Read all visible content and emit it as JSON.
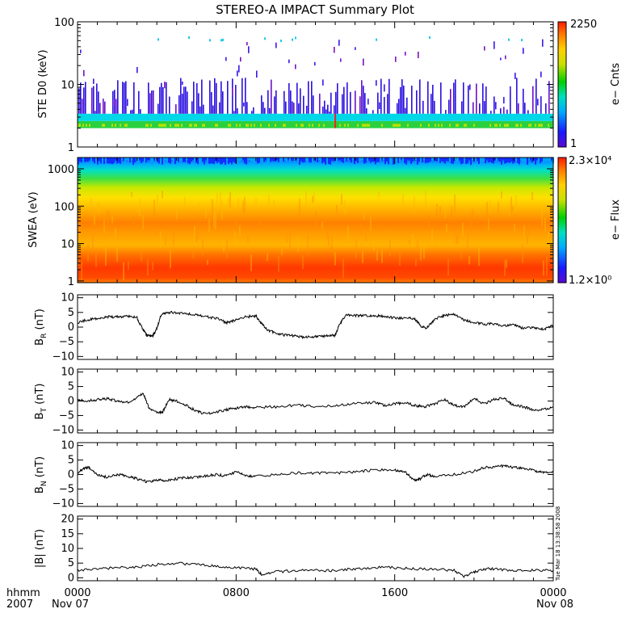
{
  "title": "STEREO-A IMPACT Summary Plot",
  "footer": {
    "left_top": "hhmm",
    "left_bottom": "2007",
    "date_start": "Nov 07",
    "date_end": "Nov 08",
    "timestamp": "Tue Mar 18 13:38:58 2008"
  },
  "time_ticks": [
    "0000",
    "0800",
    "1600",
    "0000"
  ],
  "chart_data": [
    {
      "id": "ste",
      "type": "heatmap",
      "ylabel": "STE D0 (keV)",
      "yscale": "log",
      "ylim": [
        1,
        100
      ],
      "yticks": [
        "1",
        "10",
        "100"
      ],
      "xlim": [
        0,
        24
      ],
      "colorbar": {
        "label": "e− Cnts",
        "max_label": "2250",
        "min_label": "1",
        "max": 2250,
        "min": 1
      },
      "description_levels": [
        {
          "energy_range_keV": [
            2.0,
            2.6
          ],
          "level": "green"
        },
        {
          "energy_range_keV": [
            2.6,
            3.4
          ],
          "level": "cyan"
        },
        {
          "energy_range_keV": [
            3.4,
            60
          ],
          "level": "sparse blue/purple"
        },
        {
          "energy_range_keV": [
            60,
            70
          ],
          "level": "sparse cyan"
        }
      ]
    },
    {
      "id": "swea",
      "type": "heatmap",
      "ylabel": "SWEA (eV)",
      "yscale": "log",
      "ylim": [
        0.9,
        2000
      ],
      "yticks": [
        "1",
        "10",
        "100",
        "1000"
      ],
      "xlim": [
        0,
        24
      ],
      "colorbar": {
        "label": "e− Flux",
        "max_label": "2.3×10⁴",
        "min_label": "1.2×10⁰",
        "max": 23000,
        "min": 1.2
      }
    },
    {
      "id": "br",
      "type": "line",
      "ylabel_main": "B",
      "ylabel_sub": "R",
      "ylabel_unit": " (nT)",
      "ylim": [
        -11,
        11
      ],
      "yticks": [
        "10",
        "5",
        "0",
        "−5",
        "−10"
      ],
      "ytick_values": [
        10,
        5,
        0,
        -5,
        -10
      ],
      "xlim": [
        0,
        24
      ],
      "series": [
        {
          "x": [
            0,
            0.5,
            1,
            1.5,
            2,
            2.5,
            3,
            3.2,
            3.5,
            3.8,
            4,
            4.2,
            4.5,
            5,
            5.5,
            6,
            6.5,
            7,
            7.5,
            8,
            8.5,
            9,
            9.3,
            9.6,
            10,
            10.5,
            11,
            11.5,
            12,
            12.5,
            13,
            13.2,
            13.5,
            14,
            14.5,
            15,
            15.5,
            16,
            16.5,
            17,
            17.3,
            17.6,
            18,
            18.5,
            19,
            19.5,
            20,
            20.5,
            21,
            21.5,
            22,
            22.5,
            23,
            23.5,
            24
          ],
          "y": [
            1.5,
            2.5,
            3.0,
            3.5,
            3.5,
            3.8,
            3.2,
            0.5,
            -2.8,
            -3.0,
            -0.5,
            4.0,
            5.0,
            5.0,
            4.5,
            4.2,
            3.5,
            3.0,
            1.5,
            2.5,
            3.5,
            3.8,
            1.0,
            -1.0,
            -2.0,
            -2.8,
            -3.0,
            -3.5,
            -3.2,
            -3.0,
            -2.8,
            0.5,
            4.0,
            4.0,
            3.8,
            4.0,
            3.5,
            3.2,
            3.0,
            3.0,
            0.5,
            -0.5,
            2.5,
            4.0,
            4.5,
            2.5,
            1.5,
            1.0,
            1.2,
            0.5,
            0.8,
            -0.5,
            0.0,
            -0.8,
            0.5
          ]
        }
      ]
    },
    {
      "id": "bt",
      "type": "line",
      "ylabel_main": "B",
      "ylabel_sub": "T",
      "ylabel_unit": " (nT)",
      "ylim": [
        -11,
        11
      ],
      "yticks": [
        "10",
        "5",
        "0",
        "−5",
        "−10"
      ],
      "ytick_values": [
        10,
        5,
        0,
        -5,
        -10
      ],
      "xlim": [
        0,
        24
      ],
      "series": [
        {
          "x": [
            0,
            0.5,
            1,
            1.5,
            2,
            2.5,
            3,
            3.3,
            3.6,
            4,
            4.3,
            4.6,
            5,
            5.5,
            6,
            6.5,
            7,
            7.5,
            8,
            8.5,
            9,
            10,
            11,
            12,
            13,
            14,
            15,
            15.5,
            16,
            16.5,
            17,
            17.5,
            18,
            18.5,
            19,
            19.5,
            20,
            20.5,
            21,
            21.5,
            22,
            22.5,
            23,
            23.5,
            24
          ],
          "y": [
            0.5,
            0.0,
            0.5,
            0.8,
            0.0,
            -0.5,
            1.0,
            3.0,
            -2.5,
            -4.0,
            -3.8,
            0.5,
            0.0,
            -1.5,
            -3.5,
            -4.5,
            -3.8,
            -3.0,
            -2.5,
            -2.0,
            -2.2,
            -2.0,
            -1.5,
            -1.8,
            -1.5,
            -0.8,
            -0.5,
            -1.5,
            -1.0,
            -0.5,
            -1.5,
            -2.0,
            -1.0,
            0.5,
            -1.5,
            -2.0,
            1.0,
            -1.0,
            0.5,
            1.0,
            -1.5,
            -2.0,
            -3.0,
            -3.0,
            -2.0
          ]
        }
      ]
    },
    {
      "id": "bn",
      "type": "line",
      "ylabel_main": "B",
      "ylabel_sub": "N",
      "ylabel_unit": " (nT)",
      "ylim": [
        -11,
        11
      ],
      "yticks": [
        "10",
        "5",
        "0",
        "−5",
        "−10"
      ],
      "ytick_values": [
        10,
        5,
        0,
        -5,
        -10
      ],
      "xlim": [
        0,
        24
      ],
      "series": [
        {
          "x": [
            0,
            0.3,
            0.6,
            1,
            1.5,
            2,
            2.5,
            3,
            3.5,
            4,
            4.5,
            5,
            5.5,
            6,
            6.5,
            7,
            7.5,
            8,
            8.5,
            9,
            10,
            11,
            12,
            13,
            14,
            15,
            16,
            16.5,
            17,
            17.3,
            17.6,
            18,
            19,
            20,
            20.5,
            21,
            21.5,
            22,
            22.5,
            23,
            23.5,
            24
          ],
          "y": [
            0.5,
            2.0,
            2.5,
            0.0,
            -1.0,
            0.0,
            -0.5,
            -1.5,
            -2.5,
            -2.0,
            -2.0,
            -1.5,
            -1.0,
            -1.0,
            -0.5,
            0.0,
            -0.5,
            1.0,
            -0.5,
            -0.5,
            0.0,
            0.5,
            0.5,
            0.5,
            1.0,
            1.5,
            1.5,
            1.0,
            -2.0,
            -1.5,
            0.0,
            -0.5,
            0.0,
            1.0,
            2.5,
            2.5,
            3.0,
            2.5,
            2.0,
            1.5,
            0.5,
            1.0
          ]
        }
      ]
    },
    {
      "id": "bmag",
      "type": "line",
      "ylabel": "|B| (nT)",
      "ylim": [
        -1,
        21
      ],
      "yticks": [
        "20",
        "15",
        "10",
        "5",
        "0"
      ],
      "ytick_values": [
        20,
        15,
        10,
        5,
        0
      ],
      "xlim": [
        0,
        24
      ],
      "series": [
        {
          "x": [
            0,
            1,
            2,
            3,
            4,
            5,
            6,
            7,
            8,
            9,
            9.3,
            10,
            11,
            12,
            13,
            14,
            15,
            16,
            17,
            18,
            19,
            19.5,
            20,
            20.5,
            21,
            22,
            23,
            24
          ],
          "y": [
            2.5,
            3.0,
            3.5,
            3.5,
            4.5,
            5.0,
            4.5,
            4.0,
            3.5,
            3.0,
            1.0,
            2.0,
            2.5,
            2.5,
            2.5,
            3.0,
            3.5,
            3.5,
            3.0,
            3.0,
            2.5,
            0.5,
            2.0,
            3.0,
            3.0,
            2.5,
            2.5,
            2.5
          ]
        }
      ]
    }
  ]
}
